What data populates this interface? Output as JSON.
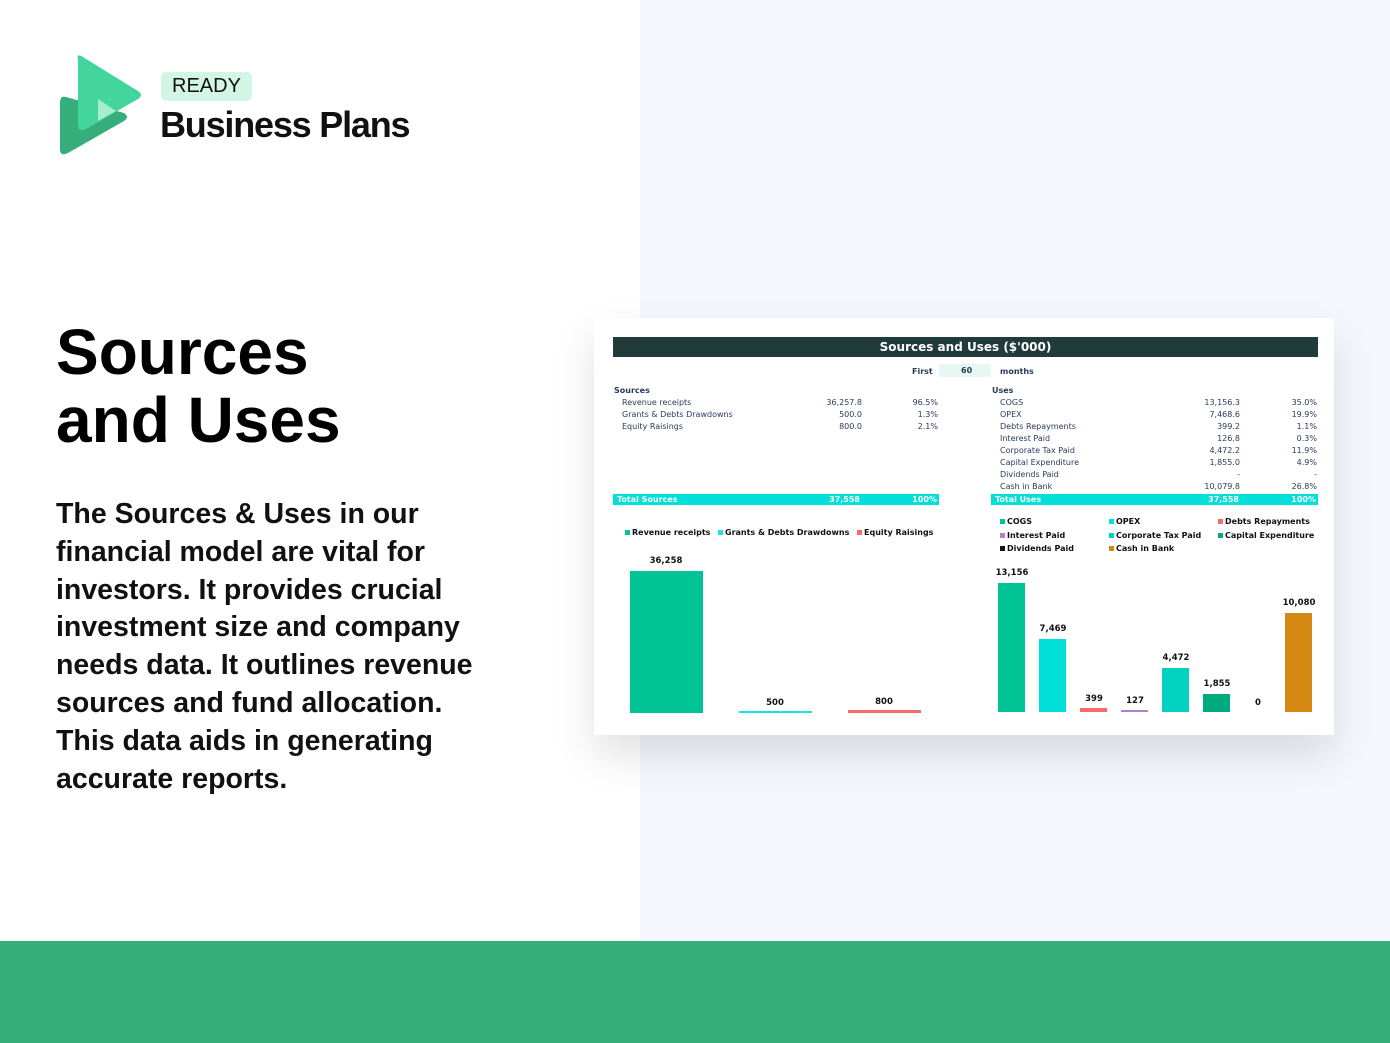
{
  "brand": {
    "badge": "READY",
    "name": "Business Plans"
  },
  "hero": {
    "title_line1": "Sources",
    "title_line2": "and Uses",
    "description": "The Sources & Uses in our financial model are vital for investors. It provides crucial investment size and company needs data. It outlines revenue sources and fund allocation. This data aids in generating accurate reports."
  },
  "sheet": {
    "title": "Sources and Uses ($'000)",
    "period_label": "First",
    "period_value": "60",
    "period_unit": "months",
    "sources": {
      "heading": "Sources",
      "rows": [
        {
          "label": "Revenue receipts",
          "value": "36,257.8",
          "pct": "96.5%"
        },
        {
          "label": "Grants & Debts Drawdowns",
          "value": "500.0",
          "pct": "1.3%"
        },
        {
          "label": "Equity Raisings",
          "value": "800.0",
          "pct": "2.1%"
        }
      ],
      "total_label": "Total Sources",
      "total_value": "37,558",
      "total_pct": "100%"
    },
    "uses": {
      "heading": "Uses",
      "rows": [
        {
          "label": "COGS",
          "value": "13,156.3",
          "pct": "35.0%"
        },
        {
          "label": "OPEX",
          "value": "7,468.6",
          "pct": "19.9%"
        },
        {
          "label": "Debts Repayments",
          "value": "399.2",
          "pct": "1.1%"
        },
        {
          "label": "Interest Paid",
          "value": "126.8",
          "pct": "0.3%"
        },
        {
          "label": "Corporate Tax Paid",
          "value": "4,472.2",
          "pct": "11.9%"
        },
        {
          "label": "Capital Expenditure",
          "value": "1,855.0",
          "pct": "4.9%"
        },
        {
          "label": "Dividends Paid",
          "value": "-",
          "pct": "-"
        },
        {
          "label": "Cash in Bank",
          "value": "10,079.8",
          "pct": "26.8%"
        }
      ],
      "total_label": "Total Uses",
      "total_value": "37,558",
      "total_pct": "100%"
    }
  },
  "chart_data": [
    {
      "type": "bar",
      "legend": "top",
      "categories": [
        "Revenue receipts",
        "Grants & Debts Drawdowns",
        "Equity Raisings"
      ],
      "values": [
        36258,
        500,
        800
      ],
      "labels": [
        "36,258",
        "500",
        "800"
      ],
      "colors": [
        "#00c495",
        "#1de0e0",
        "#f76b6b"
      ]
    },
    {
      "type": "bar",
      "legend": "top",
      "categories": [
        "COGS",
        "OPEX",
        "Debts Repayments",
        "Interest Paid",
        "Corporate Tax Paid",
        "Capital Expenditure",
        "Dividends Paid",
        "Cash in Bank"
      ],
      "values": [
        13156,
        7469,
        399,
        127,
        4472,
        1855,
        0,
        10080
      ],
      "labels": [
        "13,156",
        "7,469",
        "399",
        "127",
        "4,472",
        "1,855",
        "0",
        "10,080"
      ],
      "colors": [
        "#00c495",
        "#00e0d8",
        "#f76b6b",
        "#b57fd0",
        "#00d1c0",
        "#00aa80",
        "#111111",
        "#d68912"
      ]
    }
  ]
}
